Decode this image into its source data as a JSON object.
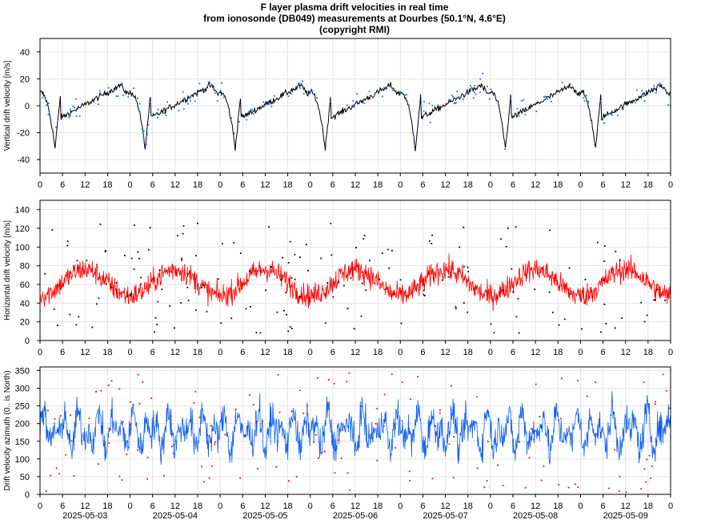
{
  "title": {
    "line1": "F layer plasma drift velocities in real time",
    "line2": "from ionosonde (DB049) measurements at Dourbes (50.1°N, 4.6°E)",
    "line3": "(copyright RMI)"
  },
  "colors": {
    "vertical_line": "#000000",
    "vertical_points": "#1e6fe0",
    "horizontal_line": "#ff0000",
    "horizontal_points": "#000000",
    "azimuth_line": "#1060ee",
    "azimuth_points": "#ff0000",
    "grid": "#d8d8d8"
  },
  "x_axis": {
    "hour_ticks": [
      "0",
      "6",
      "12",
      "18"
    ],
    "days": [
      "2025-05-03",
      "2025-05-04",
      "2025-05-05",
      "2025-05-06",
      "2025-05-07",
      "2025-05-08",
      "2025-05-09"
    ],
    "end_label": "0"
  },
  "chart_data": [
    {
      "type": "line",
      "ylabel": "Vertical drift velocity [m/s]",
      "ylim": [
        -50,
        50
      ],
      "yticks": [
        -40,
        -20,
        0,
        20,
        40
      ],
      "x_range_hours": [
        0,
        168
      ],
      "grid": true,
      "series": [
        {
          "style": "line",
          "shape": "daily sawtooth: dip to about -32 m/s near 04 UT, rising to about +14 m/s by 20-22 UT",
          "dip_value": -32,
          "dip_hour": 4,
          "peak_value": 14
        },
        {
          "style": "points",
          "shape": "scattered measurements around the line"
        }
      ]
    },
    {
      "type": "line",
      "ylabel": "Horizontal drift velocity [m/s]",
      "ylim": [
        0,
        150
      ],
      "yticks": [
        0,
        20,
        40,
        60,
        80,
        100,
        120,
        140
      ],
      "x_range_hours": [
        0,
        168
      ],
      "grid": true,
      "series": [
        {
          "style": "line",
          "shape": "noisy values mostly 30-100 m/s, daily peak near 12 UT",
          "typical_min": 30,
          "typical_max": 100
        },
        {
          "style": "points",
          "shape": "scattered measurements 5-130 m/s"
        }
      ]
    },
    {
      "type": "line",
      "ylabel": "Drift velocity azimuth (0.. is North)",
      "ylim": [
        0,
        360
      ],
      "yticks": [
        0,
        50,
        100,
        150,
        200,
        250,
        300,
        350
      ],
      "x_range_hours": [
        0,
        168
      ],
      "grid": true,
      "series": [
        {
          "style": "line",
          "shape": "oscillating between about 50 and 300 degrees",
          "typical_min": 50,
          "typical_max": 300
        },
        {
          "style": "points",
          "shape": "scattered measurements 0-355 degrees"
        }
      ]
    }
  ]
}
